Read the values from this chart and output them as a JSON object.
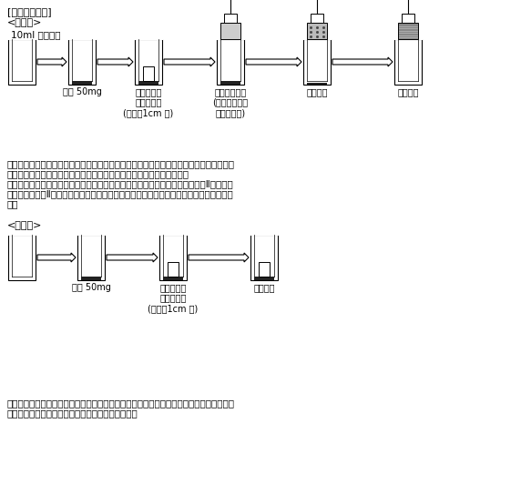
{
  "title": "[実験操作方法]",
  "section1": "<本試験>",
  "section1_label": "10ml ガラス瓶",
  "section2": "<空試験>",
  "bg_color": "#ffffff",
  "text_color": "#000000",
  "main_labels": [
    "検体 50mg",
    "検体の上に\n魚肉を静置\n(魚肉：1cm 角)",
    "磁石をセット\n(魚肉に接して\n磁石を吊す)",
    "１５分後",
    "６０分後"
  ],
  "blank_labels": [
    "検体 50mg",
    "検体の上に\n魚肉を静置\n(魚肉：1cm 角)",
    "６０分後"
  ],
  "para1_line1": "　磁石をセットすると、すぐに検体の誘導が始まり、約１５分で検体の半分程度が磁石に",
  "para1_line2": "誘導され魚肉に吸収され、約６０分で検体の全部が魚肉に吸収された。",
  "para1_line3": "　尚、検体は［Ｉ－１ａ］、［Ｉ－３ａ］、［Ｉ－４ａ］、［Ｉ－６ａ］、［Ⅱ－７ａ～",
  "para1_line4": "ｄａ］および［Ⅱ－１０ａ～ｄａ］ついて実験を行ったが、ほとんど同一の結果が得られ",
  "para1_line5": "た。",
  "para2_line1": "　本試験に用いた検体のすべてについて、磁石を用いない空試験を行ったところ、６０分",
  "para2_line2": "後において、魚肉への吸収が全く起こらなかった。"
}
